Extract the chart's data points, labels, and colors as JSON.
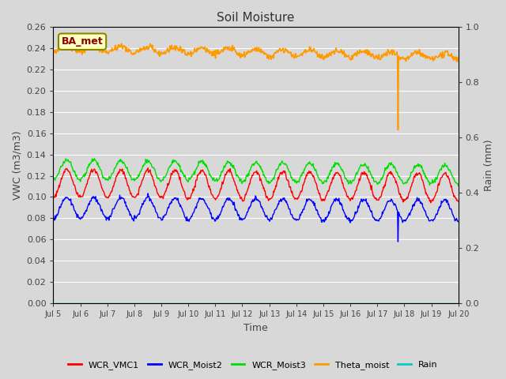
{
  "title": "Soil Moisture",
  "ylabel_left": "VWC (m3/m3)",
  "ylabel_right": "Rain (mm)",
  "xlabel": "Time",
  "ylim_left": [
    0.0,
    0.26
  ],
  "ylim_right": [
    0.0,
    1.0
  ],
  "yticks_left": [
    0.0,
    0.02,
    0.04,
    0.06,
    0.08,
    0.1,
    0.12,
    0.14,
    0.16,
    0.18,
    0.2,
    0.22,
    0.24,
    0.26
  ],
  "yticks_right": [
    0.0,
    0.2,
    0.4,
    0.6,
    0.8,
    1.0
  ],
  "fig_bg_color": "#d8d8d8",
  "plot_bg_color": "#d8d8d8",
  "grid_color": "#ffffff",
  "annotation_text": "BA_met",
  "annotation_bg": "#ffffc0",
  "annotation_border": "#888800",
  "annotation_text_color": "#8b0000",
  "series": {
    "WCR_VMC1": {
      "color": "#ff0000",
      "base": 0.113,
      "amp": 0.013,
      "period": 1.0,
      "trend": -0.004
    },
    "WCR_Moist2": {
      "color": "#0000ff",
      "base": 0.09,
      "amp": 0.01,
      "period": 1.0,
      "trend": -0.003
    },
    "WCR_Moist3": {
      "color": "#00dd00",
      "base": 0.126,
      "amp": 0.009,
      "period": 1.0,
      "trend": -0.005
    },
    "Theta_moist": {
      "color": "#ff9900",
      "base": 0.24,
      "amp": 0.003,
      "period": 1.0,
      "trend": -0.008
    },
    "Rain": {
      "color": "#00cccc",
      "base": 0.0,
      "amp": 0.0,
      "period": 1.0,
      "trend": 0.0
    }
  },
  "spike_day_blue": 12.75,
  "spike_day_orange": 12.75,
  "spike_val_blue": 0.058,
  "spike_val_orange": 0.163,
  "legend_entries": [
    "WCR_VMC1",
    "WCR_Moist2",
    "WCR_Moist3",
    "Theta_moist",
    "Rain"
  ],
  "legend_colors": [
    "#ff0000",
    "#0000ff",
    "#00dd00",
    "#ff9900",
    "#00cccc"
  ]
}
